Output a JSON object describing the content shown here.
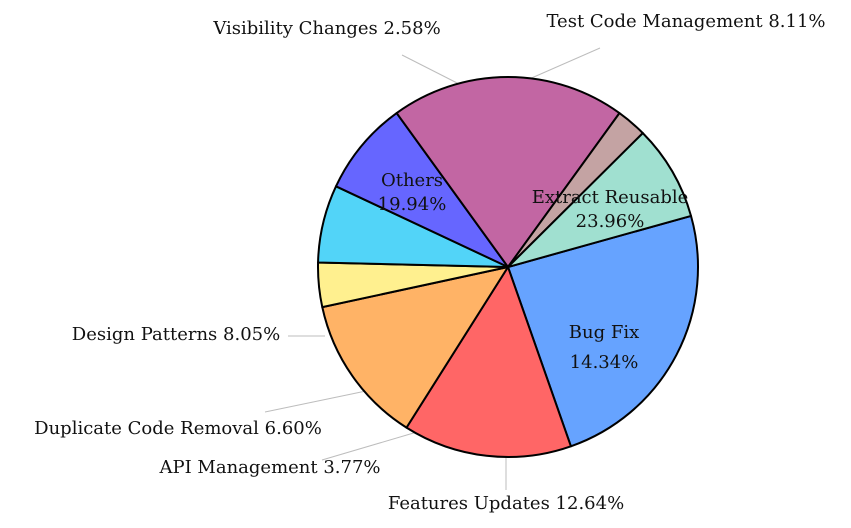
{
  "chart_data": {
    "type": "pie",
    "title": "",
    "slices": [
      {
        "label": "Extract Reusable",
        "value": 23.96,
        "display": "23.96%",
        "color": "#66a3ff",
        "label_position": "inside"
      },
      {
        "label": "Bug Fix",
        "value": 14.34,
        "display": "14.34%",
        "color": "#ff6666",
        "label_position": "inside"
      },
      {
        "label": "Features Updates",
        "value": 12.64,
        "display": "12.64%",
        "color": "#ffb366",
        "label_position": "outside"
      },
      {
        "label": "API Management",
        "value": 3.77,
        "display": "3.77%",
        "color": "#fff08f",
        "label_position": "outside"
      },
      {
        "label": "Duplicate Code Removal",
        "value": 6.6,
        "display": "6.60%",
        "color": "#52d4f8",
        "label_position": "outside"
      },
      {
        "label": "Design Patterns",
        "value": 8.05,
        "display": "8.05%",
        "color": "#6666ff",
        "label_position": "outside"
      },
      {
        "label": "Others",
        "value": 19.94,
        "display": "19.94%",
        "color": "#c266a3",
        "label_position": "inside"
      },
      {
        "label": "Visibility Changes",
        "value": 2.58,
        "display": "2.58%",
        "color": "#c4a3a3",
        "label_position": "outside"
      },
      {
        "label": "Test Code Management",
        "value": 8.11,
        "display": "8.11%",
        "color": "#a0e0d0",
        "label_position": "outside"
      }
    ]
  }
}
